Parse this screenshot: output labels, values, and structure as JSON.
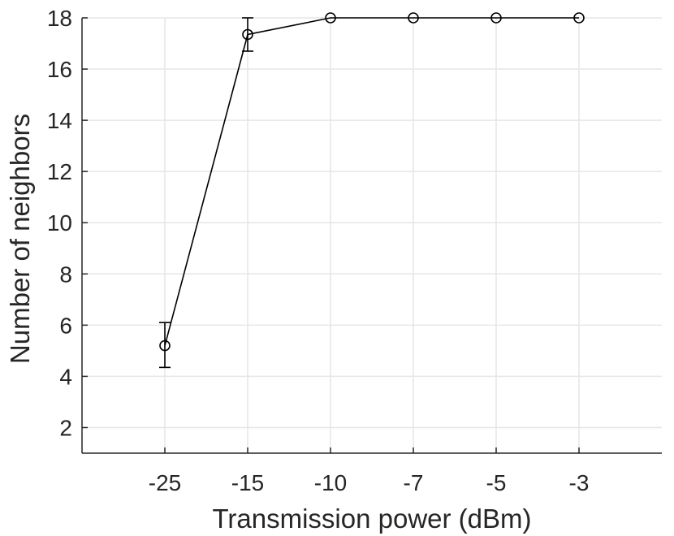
{
  "chart_data": {
    "type": "line",
    "xlabel": "Transmission power (dBm)",
    "ylabel": "Number of neighbors",
    "categories": [
      "-25",
      "-15",
      "-10",
      "-7",
      "-5",
      "-3"
    ],
    "yticks": [
      2,
      4,
      6,
      8,
      10,
      12,
      14,
      16,
      18
    ],
    "ylim": [
      1,
      18
    ],
    "grid": true,
    "series": [
      {
        "values": [
          5.2,
          17.35,
          18,
          18,
          18,
          18
        ],
        "error_lower": [
          4.35,
          16.7,
          18,
          18,
          18,
          18
        ],
        "error_upper": [
          6.1,
          18.0,
          18,
          18,
          18,
          18
        ],
        "marker": "circle",
        "color": "#000000"
      }
    ]
  }
}
